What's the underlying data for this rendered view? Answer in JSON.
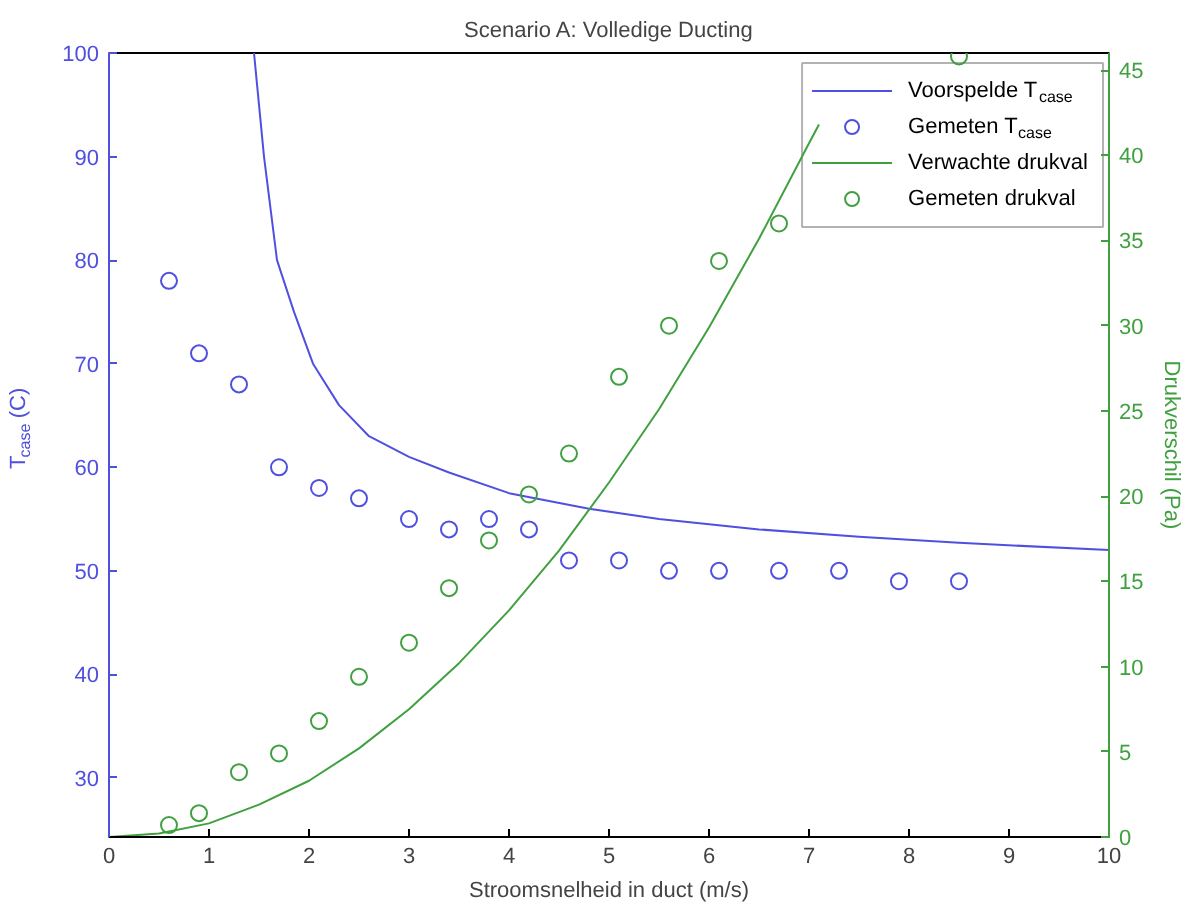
{
  "chart_data": {
    "type": "line",
    "title": "Scenario A: Volledige Ducting",
    "xlabel": "Stroomsnelheid in duct (m/s)",
    "ylabel": "T$_{case}$ (C)",
    "y2label": "Drukverschil (Pa)",
    "xlim": [
      0,
      10
    ],
    "xticks": [
      0,
      1,
      2,
      3,
      4,
      5,
      6,
      7,
      8,
      9,
      10
    ],
    "ylim": [
      24.3,
      100
    ],
    "yticks": [
      30,
      40,
      50,
      60,
      70,
      80,
      90,
      100
    ],
    "y2lim": [
      0,
      46
    ],
    "y2ticks": [
      0,
      5,
      10,
      15,
      20,
      25,
      30,
      35,
      40,
      45
    ],
    "grid": false,
    "legend": "top right",
    "series": [
      {
        "name": "Voorspelde T$_{case}$",
        "color": "#5050e0",
        "x": [
          1.45,
          1.55,
          1.68,
          1.85,
          2.04,
          2.3,
          2.6,
          3.0,
          3.4,
          4.0,
          4.8,
          5.5,
          6.5,
          7.5,
          8.5,
          10
        ],
        "values": [
          100,
          90,
          80,
          75,
          70,
          66,
          63,
          61,
          59.5,
          57.5,
          56,
          55,
          54,
          53.3,
          52.7,
          52
        ]
      },
      {
        "name": "Gemeten T$_{case}$",
        "type": "scatter",
        "marker": "circle",
        "color": "#5050e0",
        "x": [
          0.6,
          0.9,
          1.3,
          1.7,
          2.1,
          2.5,
          3.0,
          3.4,
          3.8,
          4.2,
          4.6,
          5.1,
          5.6,
          6.1,
          6.7,
          7.3,
          7.9,
          8.5
        ],
        "values": [
          78,
          71,
          68,
          60,
          58,
          57,
          55,
          54,
          55,
          54,
          51,
          51,
          50,
          50,
          50,
          50,
          49,
          49
        ]
      },
      {
        "name": "Verwachte drukval",
        "axis": "y2",
        "color": "#40a040",
        "x": [
          0,
          0.5,
          1,
          1.5,
          2,
          2.5,
          3,
          3.5,
          4,
          4.5,
          5,
          5.5,
          6,
          6.5,
          7,
          7.1
        ],
        "values": [
          0,
          0.2,
          0.8,
          1.9,
          3.3,
          5.2,
          7.5,
          10.2,
          13.3,
          16.8,
          20.8,
          25.1,
          29.9,
          35.1,
          40.7,
          41.8
        ]
      },
      {
        "name": "Gemeten drukval",
        "type": "scatter",
        "marker": "circle",
        "axis": "y2",
        "color": "#40a040",
        "x": [
          0.6,
          0.9,
          1.3,
          1.7,
          2.1,
          2.5,
          3.0,
          3.4,
          3.8,
          4.2,
          4.6,
          5.1,
          5.6,
          6.1,
          6.7,
          8.5
        ],
        "values": [
          0.7,
          1.4,
          3.8,
          4.9,
          6.8,
          9.4,
          11.4,
          14.6,
          17.4,
          20.1,
          22.5,
          27.0,
          30.0,
          33.8,
          36.0,
          45.8
        ]
      }
    ]
  }
}
